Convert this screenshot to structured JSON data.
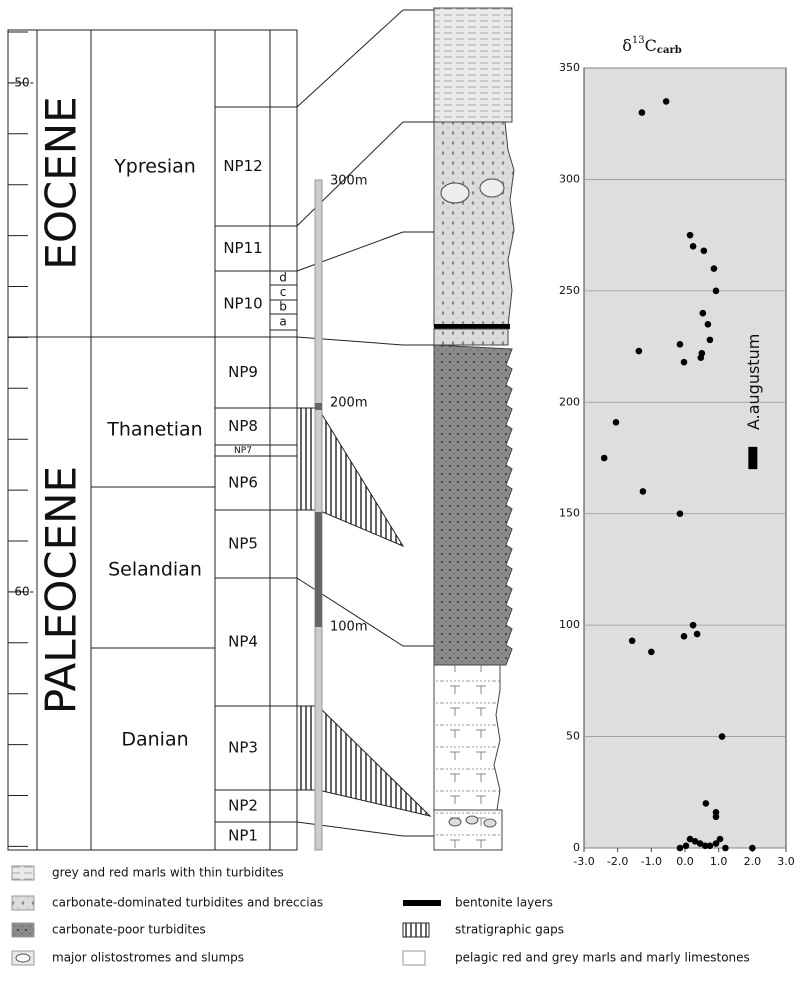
{
  "stratigraphy": {
    "age_labels": [
      "-50-",
      "-60-"
    ],
    "epochs": [
      "EOCENE",
      "PALEOCENE"
    ],
    "stages": [
      "Ypresian",
      "Thanetian",
      "Selandian",
      "Danian"
    ],
    "zones": [
      "NP12",
      "NP11",
      "NP10",
      "NP9",
      "NP8",
      "NP7",
      "NP6",
      "NP5",
      "NP4",
      "NP3",
      "NP2",
      "NP1"
    ],
    "subzones": [
      "d",
      "c",
      "b",
      "a"
    ],
    "thickness_labels": [
      "300m",
      "200m",
      "100m"
    ]
  },
  "legend": {
    "items": [
      "grey and red marls with thin turbidites",
      "carbonate-dominated turbidites and breccias",
      "carbonate-poor turbidites",
      "major olistostromes and slumps",
      "bentonite layers",
      "stratigraphic gaps",
      "pelagic red and grey marls and marly limestones"
    ]
  },
  "chart_data": {
    "type": "scatter",
    "title": {
      "symbol": "δ",
      "superscript": "13",
      "base": "C",
      "subscript": "carb"
    },
    "x": [
      -1.28,
      -0.56,
      0.15,
      0.24,
      0.56,
      0.86,
      0.92,
      0.53,
      0.68,
      0.74,
      -0.15,
      0.5,
      0.47,
      -1.37,
      -0.03,
      -2.05,
      -2.4,
      -1.25,
      -0.15,
      0.24,
      -0.03,
      0.36,
      -1.57,
      -1.0,
      1.1,
      0.62,
      0.92,
      0.92,
      -0.15,
      0.03,
      0.15,
      0.3,
      0.45,
      0.6,
      0.74,
      0.92,
      1.04,
      1.2,
      2.0
    ],
    "values": [
      330,
      335,
      275,
      270,
      268,
      260,
      250,
      240,
      235,
      228,
      226,
      222,
      220,
      223,
      218,
      191,
      175,
      160,
      150,
      100,
      95,
      96,
      93,
      88,
      50,
      20,
      16,
      14,
      0,
      1,
      4,
      3,
      2,
      1,
      1,
      2,
      4,
      0,
      0
    ],
    "color": "#000000",
    "xlim": [
      -3,
      3
    ],
    "xticks": [
      {
        "value": -3,
        "label": "-3.0"
      },
      {
        "value": -2,
        "label": "-2.0"
      },
      {
        "value": -1,
        "label": "-1.0"
      },
      {
        "value": 0,
        "label": "0.0"
      },
      {
        "value": 1,
        "label": "1.0"
      },
      {
        "value": 2,
        "label": "2.0"
      },
      {
        "value": 3,
        "label": "3.0"
      }
    ],
    "ylim": [
      0,
      350
    ],
    "yticks": [
      0,
      50,
      100,
      150,
      200,
      250,
      300,
      350
    ],
    "grid": true,
    "annotations": [
      {
        "text": "A.augustum",
        "x": 2.0,
        "y": [
          170,
          180
        ]
      }
    ]
  }
}
